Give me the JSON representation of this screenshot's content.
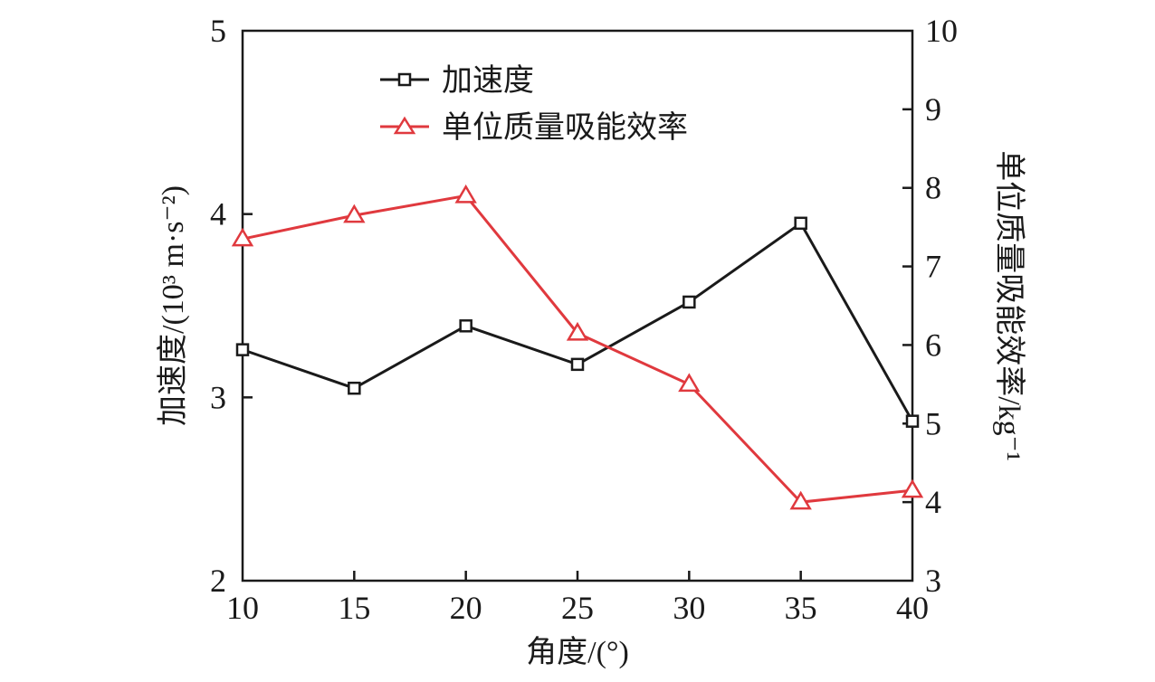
{
  "chart_data": {
    "type": "line",
    "x": [
      10,
      15,
      20,
      25,
      30,
      35,
      40
    ],
    "xlabel": "角度/(°)",
    "xlim": [
      10,
      40
    ],
    "xticks": [
      10,
      15,
      20,
      25,
      30,
      35,
      40
    ],
    "ylabel_left": "加速度/(10³ m·s⁻²)",
    "ylim_left": [
      2,
      5
    ],
    "yticks_left": [
      2,
      3,
      4,
      5
    ],
    "ylabel_right": "单位质量吸能效率/kg⁻¹",
    "ylim_right": [
      3,
      10
    ],
    "yticks_right": [
      3,
      4,
      5,
      6,
      7,
      8,
      9,
      10
    ],
    "grid": false,
    "legend_position": "top-center",
    "series": [
      {
        "name": "加速度",
        "axis": "left",
        "marker": "square",
        "color": "#1a1a1a",
        "values": [
          3.26,
          3.05,
          3.39,
          3.18,
          3.52,
          3.95,
          2.87
        ]
      },
      {
        "name": "单位质量吸能效率",
        "axis": "right",
        "marker": "triangle",
        "color": "#e0393e",
        "values": [
          7.35,
          7.65,
          7.9,
          6.15,
          5.5,
          4.0,
          4.15
        ]
      }
    ]
  }
}
